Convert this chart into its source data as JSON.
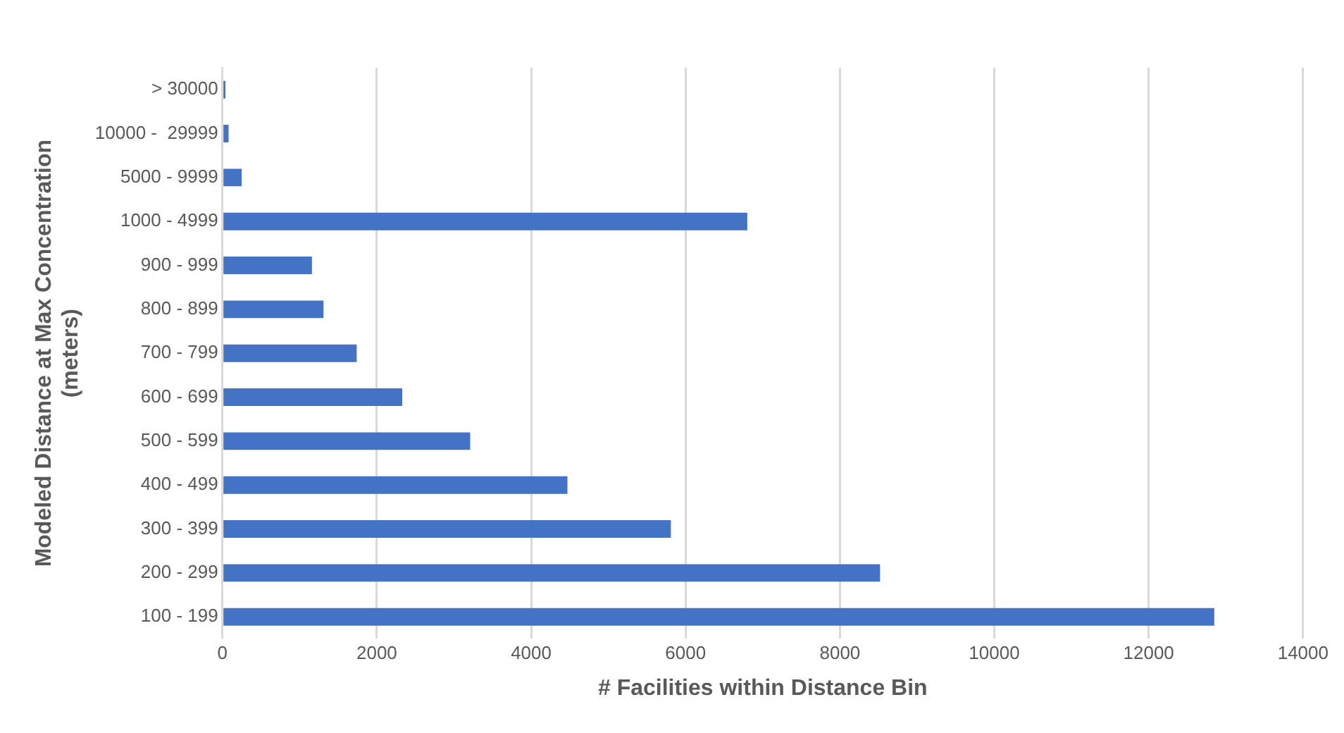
{
  "chart_data": {
    "type": "bar",
    "orientation": "horizontal",
    "xlabel": "# Facilities within Distance Bin",
    "ylabel": "Modeled Distance at Max Concentration (meters)",
    "categories": [
      "> 30000",
      "10000 -  29999",
      "5000 - 9999",
      "1000 - 4999",
      "900 - 999",
      "800 - 899",
      "700 - 799",
      "600 - 699",
      "500 - 599",
      "400 - 499",
      "300 - 399",
      "200 - 299",
      "100 - 199"
    ],
    "values": [
      40,
      80,
      250,
      6800,
      1160,
      1310,
      1740,
      2330,
      3210,
      4470,
      5810,
      8520,
      12850
    ],
    "color": "#4472c4",
    "xlim": [
      0,
      14000
    ],
    "xticks": [
      0,
      2000,
      4000,
      6000,
      8000,
      10000,
      12000,
      14000
    ],
    "grid": "x",
    "legend": false
  }
}
